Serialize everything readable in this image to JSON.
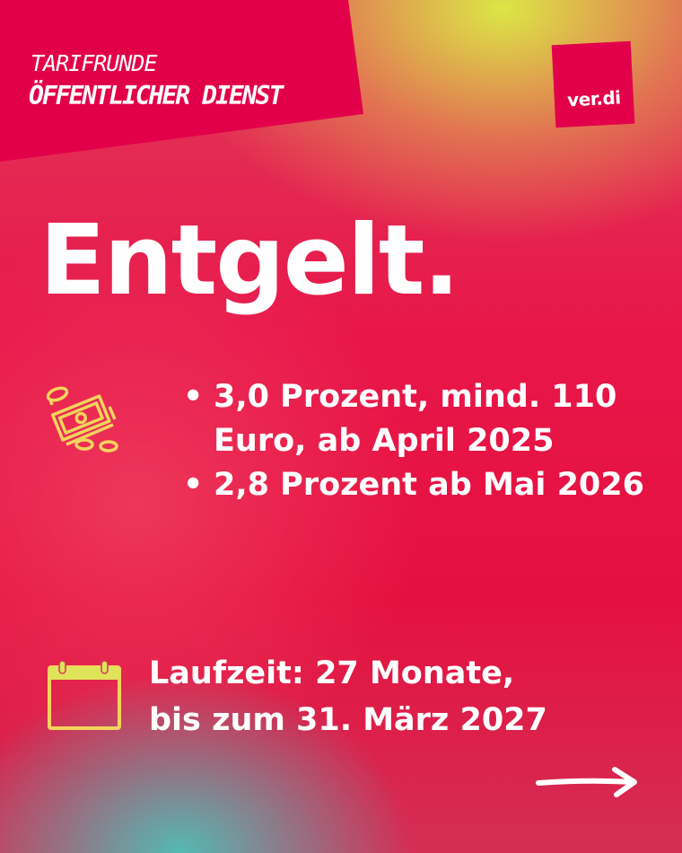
{
  "header": {
    "kicker": "TARIFRUNDE",
    "subtitle": "ÖFFENTLICHER DIENST",
    "logo_text": "ver.di"
  },
  "main": {
    "title": "Entgelt.",
    "items": [
      {
        "label": "3,0 Prozent, mind. 110 Euro, ab April 2025"
      },
      {
        "label": "2,8 Prozent ab Mai 2026"
      }
    ],
    "duration_line1": "Laufzeit: 27 Monate,",
    "duration_line2": "bis zum 31. März 2027"
  },
  "icons": {
    "money": "money-icon",
    "calendar": "calendar-icon",
    "arrow": "arrow-right-icon"
  },
  "colors": {
    "brand": "#e3004b",
    "icon": "#f2d45c"
  }
}
